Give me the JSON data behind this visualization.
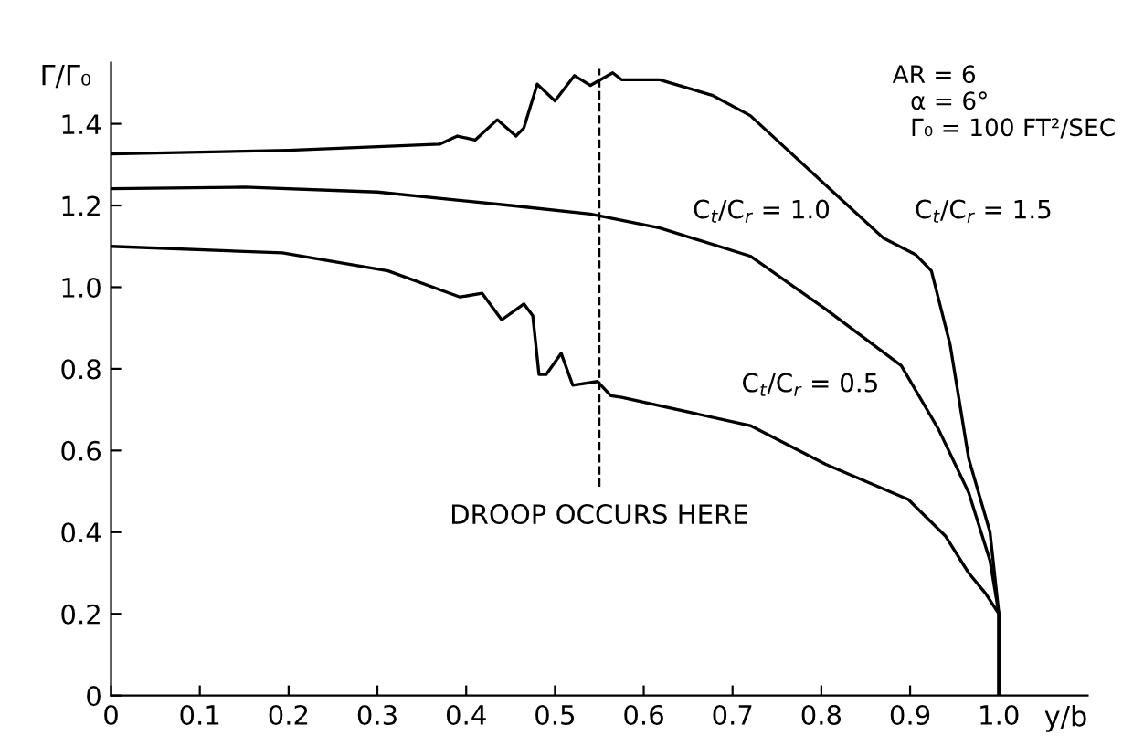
{
  "chart_data": {
    "type": "line",
    "xlabel": "y/b",
    "ylabel": "Γ/Γ₀",
    "xlim": [
      0,
      1.1
    ],
    "ylim": [
      0,
      1.55
    ],
    "xticks": [
      0,
      0.1,
      0.2,
      0.3,
      0.4,
      0.5,
      0.6,
      0.7,
      0.8,
      0.9,
      {
        "value": 1.0,
        "label": "1.0"
      }
    ],
    "yticks": [
      0,
      0.2,
      0.4,
      0.6,
      0.8,
      {
        "value": 1.0,
        "label": "1.0"
      },
      1.2,
      1.4
    ],
    "grid": false,
    "legend": false,
    "marker": "none",
    "line_style": "solid",
    "series": [
      {
        "name": "C$_{t}$/C$_{r}$ = 1.5",
        "color": "#000000",
        "x": [
          0,
          0.2,
          0.37,
          0.39,
          0.4,
          0.41,
          0.435,
          0.456,
          0.465,
          0.48,
          0.5,
          0.522,
          0.54,
          0.565,
          0.575,
          0.618,
          0.677,
          0.72,
          0.805,
          0.87,
          0.906,
          0.924,
          0.945,
          0.966,
          0.99,
          1.0,
          1.0
        ],
        "values": [
          1.326,
          1.335,
          1.35,
          1.37,
          1.365,
          1.36,
          1.41,
          1.37,
          1.39,
          1.497,
          1.456,
          1.518,
          1.494,
          1.525,
          1.508,
          1.508,
          1.47,
          1.42,
          1.25,
          1.12,
          1.08,
          1.04,
          0.86,
          0.58,
          0.4,
          0.2,
          0
        ]
      },
      {
        "name": "C$_{t}$/C$_{r}$ = 1.0",
        "color": "#000000",
        "x": [
          0,
          0.15,
          0.3,
          0.45,
          0.54,
          0.618,
          0.72,
          0.805,
          0.89,
          0.932,
          0.966,
          0.99,
          1.0,
          1.0
        ],
        "values": [
          1.241,
          1.245,
          1.233,
          1.2,
          1.179,
          1.145,
          1.076,
          0.946,
          0.808,
          0.652,
          0.497,
          0.33,
          0.2,
          0
        ]
      },
      {
        "name": "C$_{t}$/C$_{r}$ = 0.5",
        "color": "#000000",
        "x": [
          0,
          0.193,
          0.312,
          0.393,
          0.418,
          0.44,
          0.465,
          0.475,
          0.482,
          0.49,
          0.507,
          0.52,
          0.548,
          0.563,
          0.575,
          0.72,
          0.805,
          0.898,
          0.94,
          0.966,
          0.985,
          1.0,
          1.0
        ],
        "values": [
          1.1,
          1.084,
          1.04,
          0.976,
          0.985,
          0.92,
          0.959,
          0.93,
          0.786,
          0.786,
          0.838,
          0.76,
          0.769,
          0.734,
          0.73,
          0.661,
          0.566,
          0.48,
          0.39,
          0.3,
          0.25,
          0.2,
          0
        ]
      }
    ],
    "ref_lines": [
      {
        "axis": "x",
        "value": 0.55,
        "label": "DROOP OCCURS HERE",
        "line_style": "dashed",
        "color": "#000000"
      }
    ],
    "annotations": [
      "AR = 6",
      "α = 6°",
      "Γ₀ = 100 FT²/SEC"
    ]
  }
}
